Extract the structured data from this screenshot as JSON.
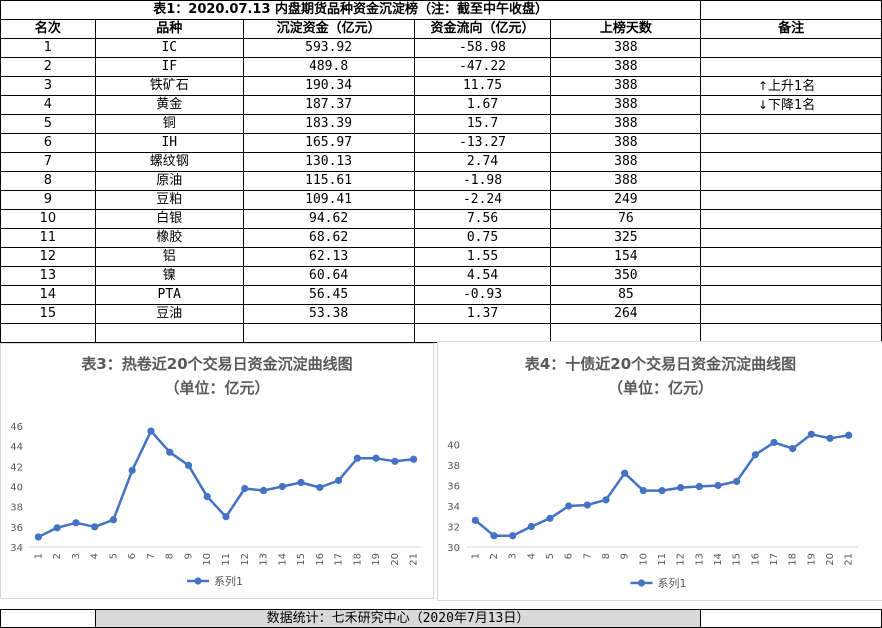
{
  "table": {
    "title": "表1：2020.07.13 内盘期货品种资金沉淀榜（注：截至中午收盘）",
    "headers": [
      "名次",
      "品种",
      "沉淀资金（亿元）",
      "资金流向（亿元）",
      "上榜天数",
      "备注"
    ],
    "rows": [
      [
        "1",
        "IC",
        "593.92",
        "-58.98",
        "388"
      ],
      [
        "2",
        "IF",
        "489.8",
        "-47.22",
        "388"
      ],
      [
        "3",
        "铁矿石",
        "190.34",
        "11.75",
        "388"
      ],
      [
        "4",
        "黄金",
        "187.37",
        "1.67",
        "388"
      ],
      [
        "5",
        "铜",
        "183.39",
        "15.7",
        "388"
      ],
      [
        "6",
        "IH",
        "165.97",
        "-13.27",
        "388"
      ],
      [
        "7",
        "螺纹钢",
        "130.13",
        "2.74",
        "388"
      ],
      [
        "8",
        "原油",
        "115.61",
        "-1.98",
        "388"
      ],
      [
        "9",
        "豆粕",
        "109.41",
        "-2.24",
        "249"
      ],
      [
        "10",
        "白银",
        "94.62",
        "7.56",
        "76"
      ],
      [
        "11",
        "橡胶",
        "68.62",
        "0.75",
        "325"
      ],
      [
        "12",
        "铝",
        "62.13",
        "1.55",
        "154"
      ],
      [
        "13",
        "镍",
        "60.64",
        "4.54",
        "350"
      ],
      [
        "14",
        "PTA",
        "56.45",
        "-0.93",
        "85"
      ],
      [
        "15",
        "豆油",
        "53.38",
        "1.37",
        "264"
      ]
    ],
    "notes": {
      "up": "上升1名",
      "down": "下降1名",
      "up_icon": "arrow-up-icon",
      "down_icon": "arrow-down-icon"
    }
  },
  "footer": {
    "text": "数据统计：七禾研究中心（2020年7月13日）"
  },
  "chart_data": [
    {
      "type": "line",
      "title": "表3：热卷近20个交易日资金沉淀曲线图",
      "subtitle": "（单位：亿元）",
      "x": [
        1,
        2,
        3,
        4,
        5,
        6,
        7,
        8,
        9,
        10,
        11,
        12,
        13,
        14,
        15,
        16,
        17,
        18,
        19,
        20,
        21
      ],
      "series": [
        {
          "name": "系列1",
          "color": "#4472c4",
          "values": [
            35.0,
            35.9,
            36.4,
            36.0,
            36.7,
            41.6,
            45.5,
            43.4,
            42.1,
            39.0,
            37.0,
            39.8,
            39.6,
            40.0,
            40.4,
            39.9,
            40.6,
            42.8,
            42.8,
            42.5,
            42.7
          ]
        }
      ],
      "ylim": [
        34,
        46
      ],
      "yticks": [
        34,
        36,
        38,
        40,
        42,
        44,
        46
      ],
      "legend": "bottom",
      "grid": false
    },
    {
      "type": "line",
      "title": "表4：十债近20个交易日资金沉淀曲线图",
      "subtitle": "（单位：亿元）",
      "x": [
        1,
        2,
        3,
        4,
        5,
        6,
        7,
        8,
        9,
        10,
        11,
        12,
        13,
        14,
        15,
        16,
        17,
        18,
        19,
        20,
        21
      ],
      "series": [
        {
          "name": "系列1",
          "color": "#4472c4",
          "values": [
            32.6,
            31.1,
            31.1,
            32.0,
            32.8,
            34.0,
            34.1,
            34.6,
            37.2,
            35.5,
            35.5,
            35.8,
            35.9,
            36.0,
            36.4,
            39.0,
            40.2,
            39.6,
            41.0,
            40.6,
            40.9
          ]
        }
      ],
      "ylim": [
        30,
        42
      ],
      "yticks": [
        30,
        32,
        34,
        36,
        38,
        40
      ],
      "legend": "bottom",
      "grid": false
    }
  ]
}
